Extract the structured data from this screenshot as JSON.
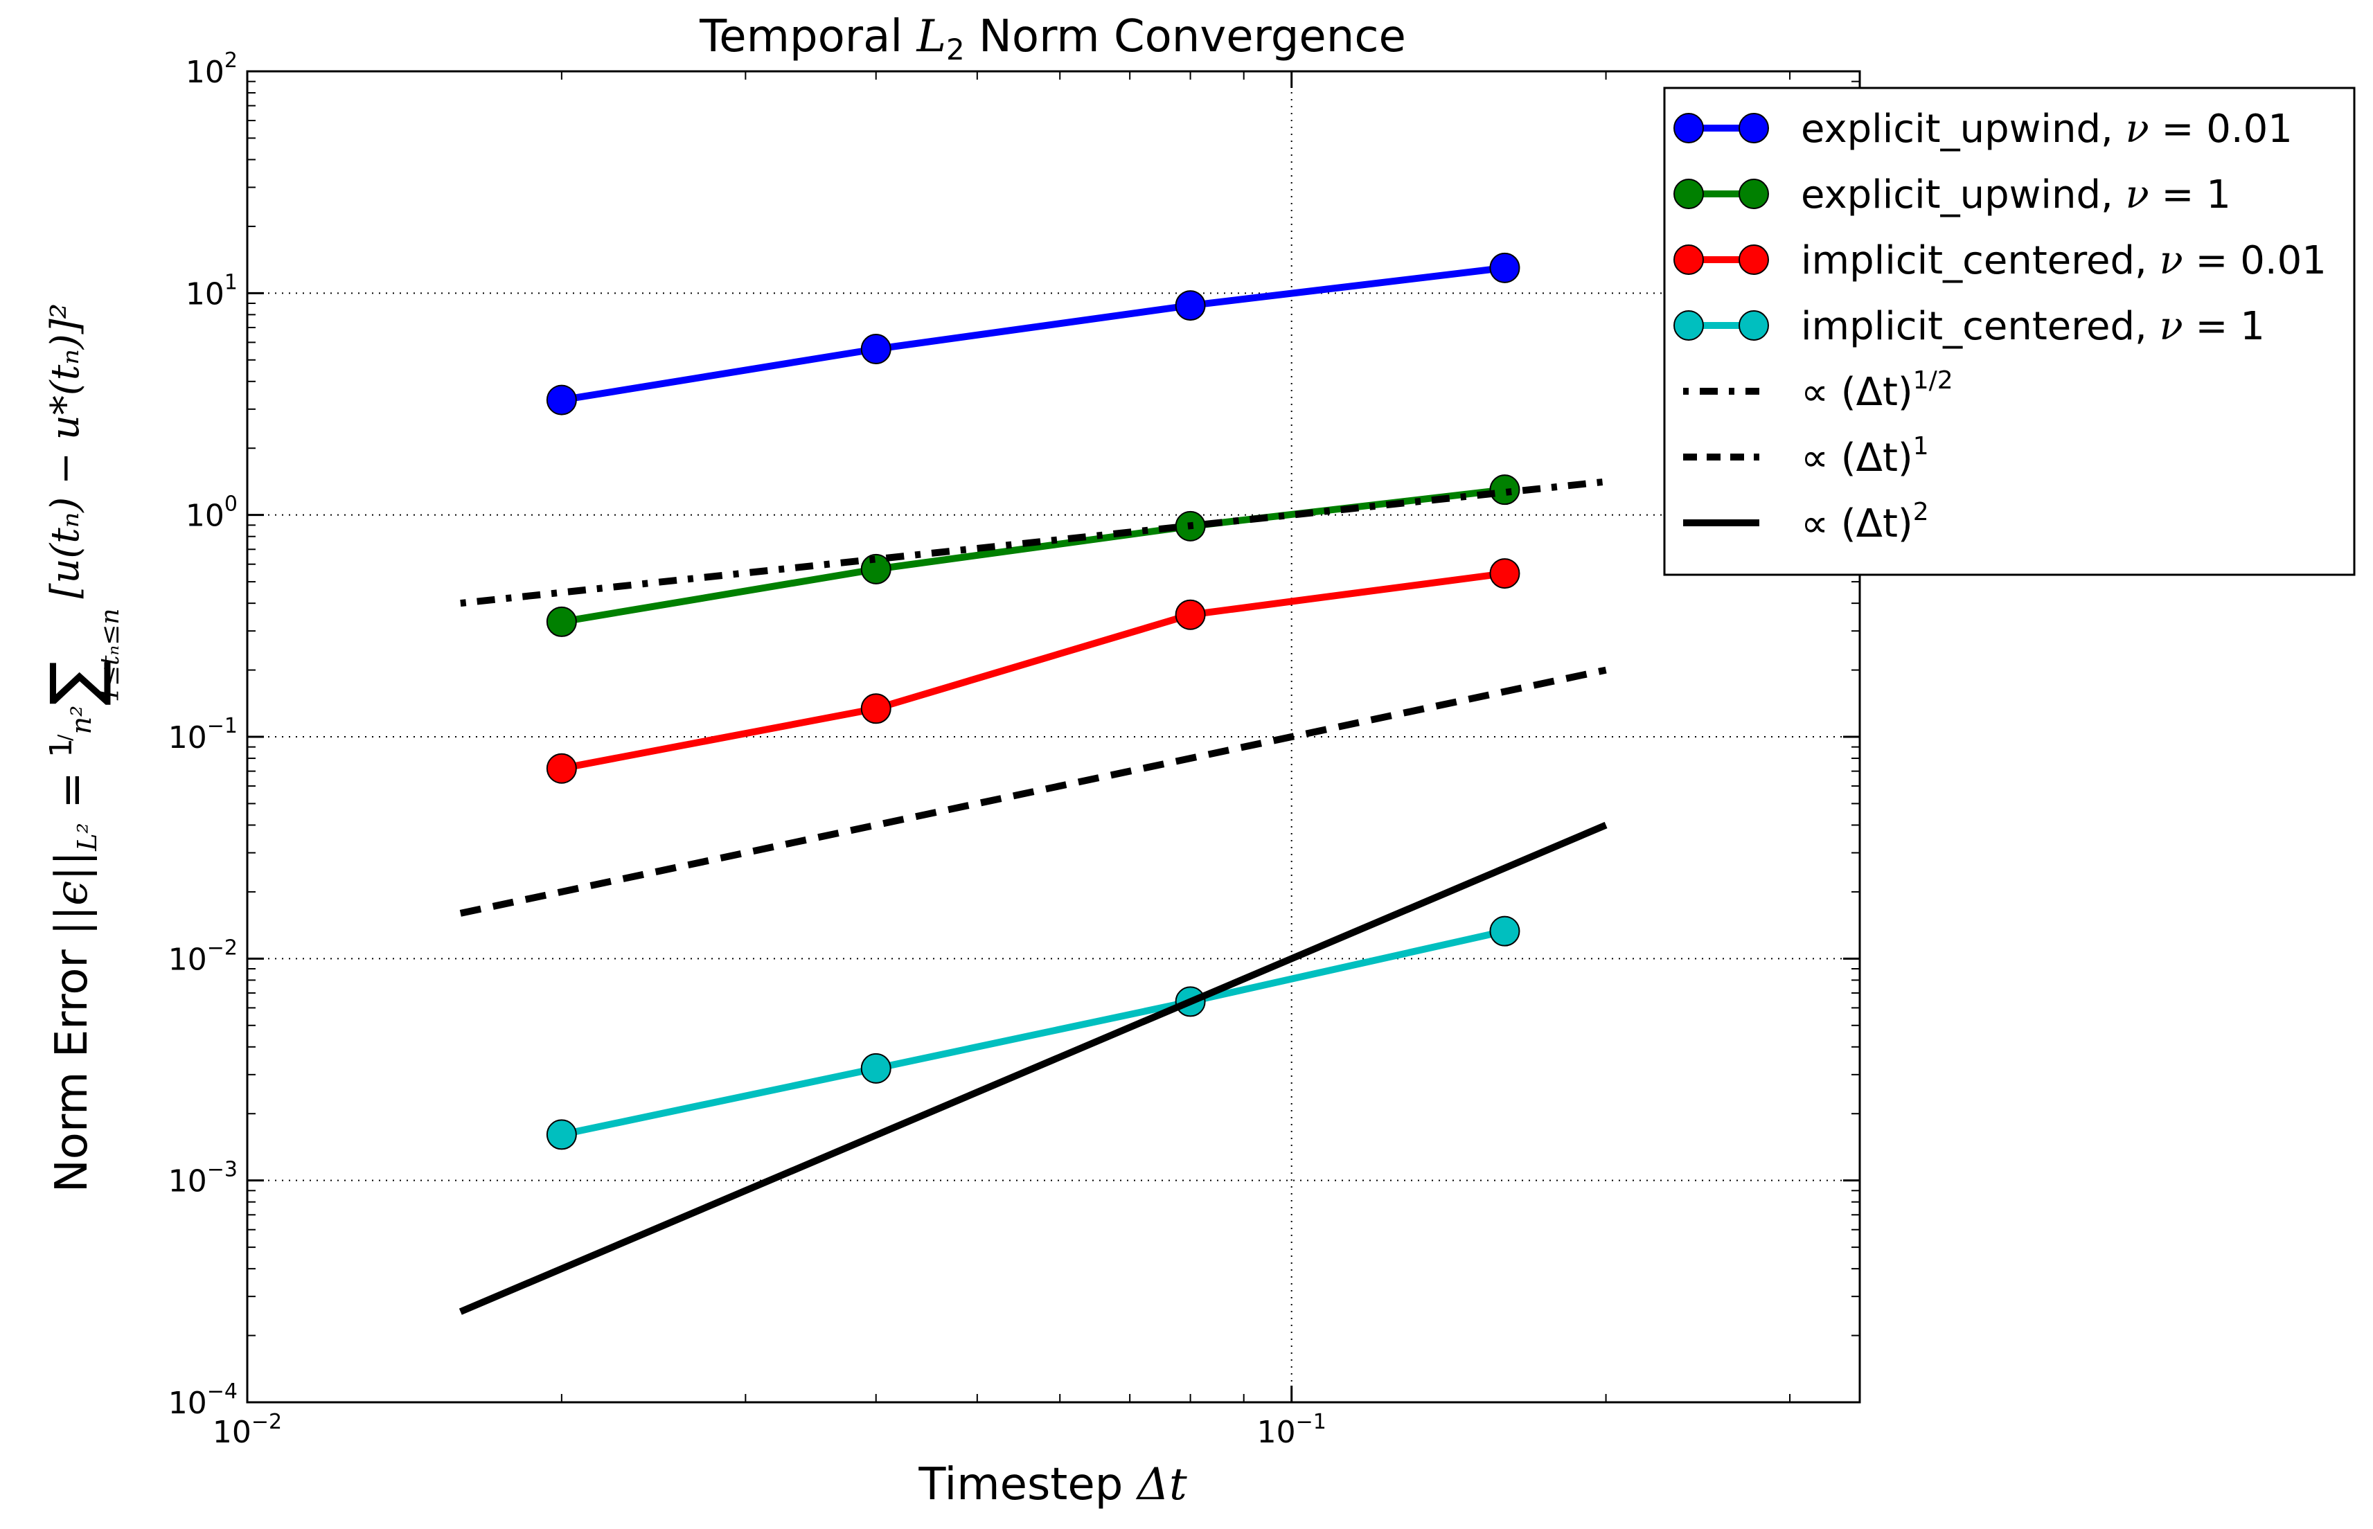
{
  "chart_data": {
    "type": "line",
    "title_parts": {
      "before": "Temporal ",
      "symbol": "L",
      "sub": "2",
      "after": " Norm Convergence"
    },
    "xlabel_parts": {
      "text": "Timestep ",
      "symbol": "Δt"
    },
    "ylabel_parts": {
      "text": "Norm Error ",
      "lhs": "||ϵ||",
      "lhs_sub": "L²",
      "eq": " = ",
      "frac_num": "1",
      "frac_den": "n²",
      "sum_sym": "∑",
      "sum_sub": "1≤tₙ≤n",
      "body": "[u(tₙ) − u*(tₙ)]²"
    },
    "x_scale": "log",
    "y_scale": "log",
    "xlim": [
      0.01,
      0.35
    ],
    "ylim": [
      0.0001,
      100
    ],
    "grid": true,
    "legend_position": "top-right (outside axes)",
    "x_ticks": [
      {
        "value": 0.01,
        "base": "10",
        "exp": "−2"
      },
      {
        "value": 0.1,
        "base": "10",
        "exp": "−1"
      }
    ],
    "y_ticks": [
      {
        "value": 0.0001,
        "base": "10",
        "exp": "−4"
      },
      {
        "value": 0.001,
        "base": "10",
        "exp": "−3"
      },
      {
        "value": 0.01,
        "base": "10",
        "exp": "−2"
      },
      {
        "value": 0.1,
        "base": "10",
        "exp": "−1"
      },
      {
        "value": 1,
        "base": "10",
        "exp": "0"
      },
      {
        "value": 10,
        "base": "10",
        "exp": "1"
      },
      {
        "value": 100,
        "base": "10",
        "exp": "2"
      }
    ],
    "series": [
      {
        "name": "explicit_upwind, ν = 0.01",
        "label_text": "explicit_upwind, ",
        "label_sym": "ν",
        "label_val": " = 0.01",
        "color": "#0000ff",
        "style": "solid-marker",
        "x": [
          0.02,
          0.04,
          0.08,
          0.16
        ],
        "y": [
          3.3,
          5.6,
          8.8,
          13.0
        ]
      },
      {
        "name": "explicit_upwind, ν = 1",
        "label_text": "explicit_upwind, ",
        "label_sym": "ν",
        "label_val": " = 1",
        "color": "#008000",
        "style": "solid-marker",
        "x": [
          0.02,
          0.04,
          0.08,
          0.16
        ],
        "y": [
          0.33,
          0.57,
          0.89,
          1.3
        ]
      },
      {
        "name": "implicit_centered, ν = 0.01",
        "label_text": "implicit_centered, ",
        "label_sym": "ν",
        "label_val": " = 0.01",
        "color": "#ff0000",
        "style": "solid-marker",
        "x": [
          0.02,
          0.04,
          0.08,
          0.16
        ],
        "y": [
          0.072,
          0.134,
          0.355,
          0.545
        ]
      },
      {
        "name": "implicit_centered, ν = 1",
        "label_text": "implicit_centered, ",
        "label_sym": "ν",
        "label_val": " = 1",
        "color": "#00bfbf",
        "style": "solid-marker",
        "x": [
          0.02,
          0.04,
          0.08,
          0.16
        ],
        "y": [
          0.00161,
          0.0032,
          0.0064,
          0.0133
        ]
      },
      {
        "name": "∝ (Δt)^1/2",
        "label_text": "∝ (Δt)",
        "label_sup": "1/2",
        "color": "#000000",
        "style": "dashdot",
        "x": [
          0.016,
          0.2
        ],
        "y": [
          0.4,
          1.414
        ]
      },
      {
        "name": "∝ (Δt)^1",
        "label_text": "∝ (Δt)",
        "label_sup": "1",
        "color": "#000000",
        "style": "dashed",
        "x": [
          0.016,
          0.2
        ],
        "y": [
          0.016,
          0.2
        ]
      },
      {
        "name": "∝ (Δt)^2",
        "label_text": "∝ (Δt)",
        "label_sup": "2",
        "color": "#000000",
        "style": "solid",
        "x": [
          0.016,
          0.2
        ],
        "y": [
          0.000256,
          0.04
        ]
      }
    ]
  }
}
